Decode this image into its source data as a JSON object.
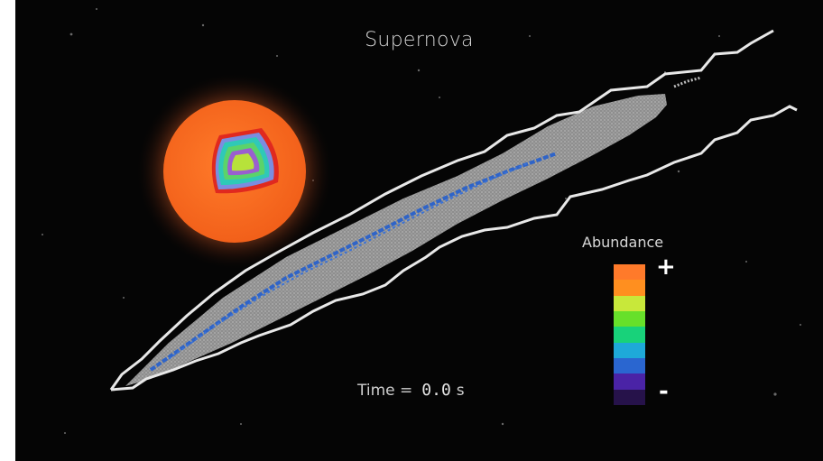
{
  "title": "Supernova",
  "time": {
    "label": "Time =",
    "value": "0.0",
    "unit": "s"
  },
  "legend": {
    "title": "Abundance",
    "high": "+",
    "low": "-",
    "colors": [
      "#ff7a2a",
      "#ff8f1f",
      "#c8e83a",
      "#67e02a",
      "#18d27a",
      "#1ea9d9",
      "#2a66d0",
      "#4a23a6",
      "#26124a"
    ]
  },
  "colors": {
    "background": "#050505",
    "star_body": "#ff6e1f",
    "plume": "#9a9a9a",
    "outline": "#e8e8e8",
    "core_trace": "#2f64c8"
  }
}
